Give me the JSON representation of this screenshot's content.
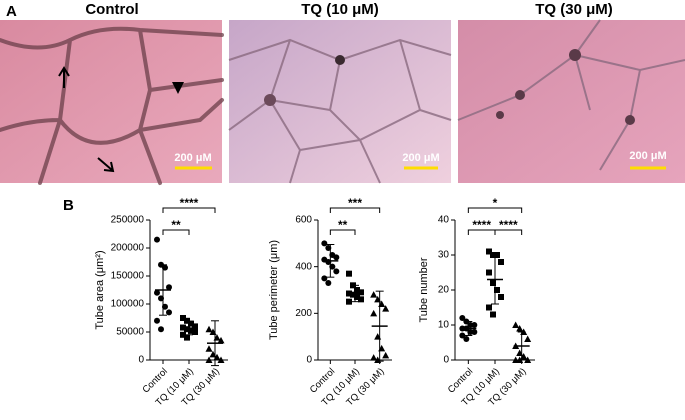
{
  "panel_a": {
    "label": "A",
    "images": [
      {
        "title": "Control",
        "scale": "200 μM"
      },
      {
        "title": "TQ (10 μM)",
        "scale": "200 μM"
      },
      {
        "title": "TQ (30 μM)",
        "scale": "200 μM"
      }
    ]
  },
  "panel_b": {
    "label": "B"
  },
  "chart_data": [
    {
      "type": "dot",
      "y_label": "Tube area (μm²)",
      "categories": [
        "Control",
        "TQ (10 μM)",
        "TQ (30 μM)"
      ],
      "markers": [
        "circle",
        "square",
        "triangle"
      ],
      "points": [
        [
          215000,
          170000,
          165000,
          130000,
          120000,
          110000,
          95000,
          85000,
          70000,
          55000
        ],
        [
          75000,
          70000,
          65000,
          60000,
          58000,
          55000,
          52000,
          50000,
          45000,
          40000
        ],
        [
          55000,
          50000,
          40000,
          35000,
          20000,
          10000,
          5000,
          0,
          0
        ]
      ],
      "means": [
        125000,
        57000,
        30000
      ],
      "sd": [
        45000,
        12000,
        40000
      ],
      "ylim": [
        0,
        250000
      ],
      "yticks": [
        0,
        50000,
        100000,
        150000,
        200000,
        250000
      ],
      "significance": [
        {
          "from": 0,
          "to": 1,
          "label": "**"
        },
        {
          "from": 0,
          "to": 2,
          "label": "****"
        }
      ]
    },
    {
      "type": "dot",
      "y_label": "Tube perimeter (μm)",
      "categories": [
        "Control",
        "TQ (10 μM)",
        "TQ (30 μM)"
      ],
      "markers": [
        "circle",
        "square",
        "triangle"
      ],
      "points": [
        [
          500,
          480,
          450,
          440,
          430,
          420,
          400,
          380,
          350,
          330
        ],
        [
          370,
          320,
          300,
          290,
          285,
          280,
          270,
          260,
          250
        ],
        [
          280,
          260,
          240,
          220,
          200,
          100,
          50,
          20,
          10,
          0
        ]
      ],
      "means": [
        425,
        285,
        145
      ],
      "sd": [
        70,
        35,
        150
      ],
      "ylim": [
        0,
        600
      ],
      "yticks": [
        0,
        200,
        400,
        600
      ],
      "significance": [
        {
          "from": 0,
          "to": 1,
          "label": "**"
        },
        {
          "from": 0,
          "to": 2,
          "label": "***"
        }
      ]
    },
    {
      "type": "dot",
      "y_label": "Tube number",
      "categories": [
        "Control",
        "TQ (10 μM)",
        "TQ (30 μM)"
      ],
      "markers": [
        "circle",
        "square",
        "triangle"
      ],
      "points": [
        [
          12,
          11,
          10,
          10,
          9,
          9,
          8,
          8,
          7,
          6
        ],
        [
          31,
          30,
          30,
          28,
          25,
          22,
          20,
          18,
          15,
          13
        ],
        [
          10,
          9,
          8,
          6,
          4,
          2,
          1,
          0,
          0,
          0
        ]
      ],
      "means": [
        9,
        23,
        4
      ],
      "sd": [
        2,
        7,
        4
      ],
      "ylim": [
        0,
        40
      ],
      "yticks": [
        0,
        10,
        20,
        30,
        40
      ],
      "significance": [
        {
          "from": 0,
          "to": 1,
          "label": "****"
        },
        {
          "from": 1,
          "to": 2,
          "label": "****"
        },
        {
          "from": 0,
          "to": 2,
          "label": "*"
        }
      ]
    }
  ]
}
